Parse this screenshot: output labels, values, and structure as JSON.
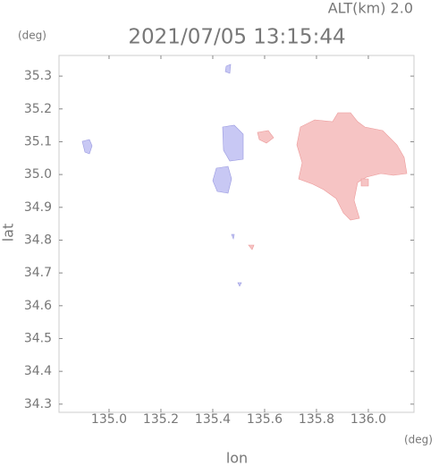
{
  "chart_data": {
    "type": "map",
    "title": "2021/07/05 13:15:44",
    "subtitle": "ALT(km)  2.0",
    "x_label": "lon",
    "y_label": "lat",
    "x_unit": "(deg)",
    "y_unit": "(deg)",
    "xlim": [
      134.807,
      136.176
    ],
    "xticks": [
      {
        "value": 135.0,
        "label": "135.0"
      },
      135.2,
      135.4,
      135.6,
      135.8,
      {
        "value": 136.0,
        "label": "136.0"
      }
    ],
    "ylim": [
      34.275,
      35.363
    ],
    "yticks": [
      34.3,
      34.4,
      34.5,
      34.6,
      34.7,
      34.8,
      34.9,
      {
        "value": 35.0,
        "label": "35.0"
      },
      35.1,
      35.2,
      35.3
    ]
  }
}
